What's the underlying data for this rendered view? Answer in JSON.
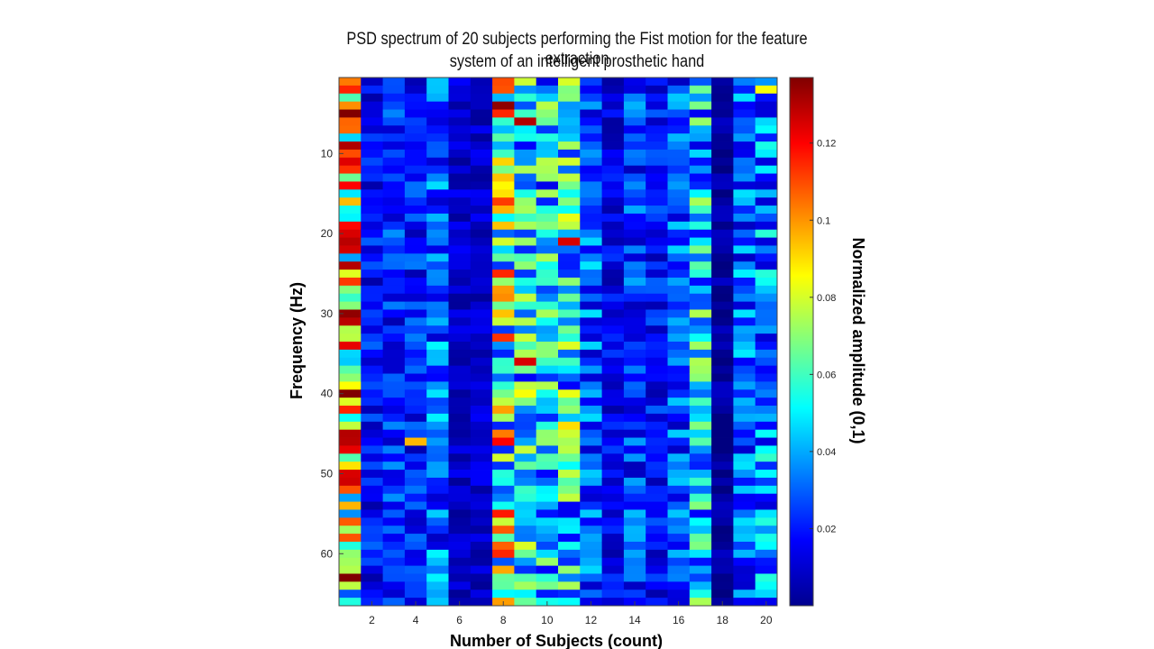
{
  "chart_data": {
    "type": "heatmap",
    "title_lines": [
      "PSD spectrum of 20 subjects performing the Fist motion for the feature extraction",
      "system of an intelligent prosthetic hand"
    ],
    "xlabel": "Number of Subjects (count)",
    "ylabel": "Frequency (Hz)",
    "colorbar_label": "Normalized amplitude (0,1)",
    "colormap": "jet",
    "x_range": [
      1,
      20
    ],
    "y_range": [
      1,
      66
    ],
    "c_range": [
      0,
      0.137
    ],
    "x_ticks": [
      2,
      4,
      6,
      8,
      10,
      12,
      14,
      16,
      18,
      20
    ],
    "y_ticks": [
      10,
      20,
      30,
      40,
      50,
      60
    ],
    "colorbar_ticks": [
      0.02,
      0.04,
      0.06,
      0.08,
      0.1,
      0.12
    ],
    "grid": false,
    "colorbar_position": "right",
    "subject_mean_amplitude": [
      0.085,
      0.018,
      0.022,
      0.02,
      0.03,
      0.01,
      0.01,
      0.07,
      0.05,
      0.045,
      0.05,
      0.03,
      0.015,
      0.025,
      0.018,
      0.028,
      0.045,
      0.004,
      0.03,
      0.035
    ],
    "notable_cells": [
      {
        "subject": 1,
        "freq_hz": 2,
        "value": 0.115
      },
      {
        "subject": 1,
        "freq_hz": 20,
        "value": 0.125
      },
      {
        "subject": 1,
        "freq_hz": 24,
        "value": 0.13
      },
      {
        "subject": 1,
        "freq_hz": 45,
        "value": 0.13
      },
      {
        "subject": 1,
        "freq_hz": 50,
        "value": 0.125
      },
      {
        "subject": 8,
        "freq_hz": 1,
        "value": 0.11
      },
      {
        "subject": 8,
        "freq_hz": 4,
        "value": 0.135
      },
      {
        "subject": 8,
        "freq_hz": 46,
        "value": 0.12
      },
      {
        "subject": 8,
        "freq_hz": 60,
        "value": 0.115
      },
      {
        "subject": 9,
        "freq_hz": 6,
        "value": 0.13
      },
      {
        "subject": 9,
        "freq_hz": 36,
        "value": 0.125
      },
      {
        "subject": 11,
        "freq_hz": 21,
        "value": 0.125
      },
      {
        "subject": 11,
        "freq_hz": 44,
        "value": 0.09
      },
      {
        "subject": 4,
        "freq_hz": 46,
        "value": 0.095
      },
      {
        "subject": 20,
        "freq_hz": 2,
        "value": 0.085
      },
      {
        "subject": 17,
        "freq_hz": 30,
        "value": 0.075
      }
    ]
  }
}
